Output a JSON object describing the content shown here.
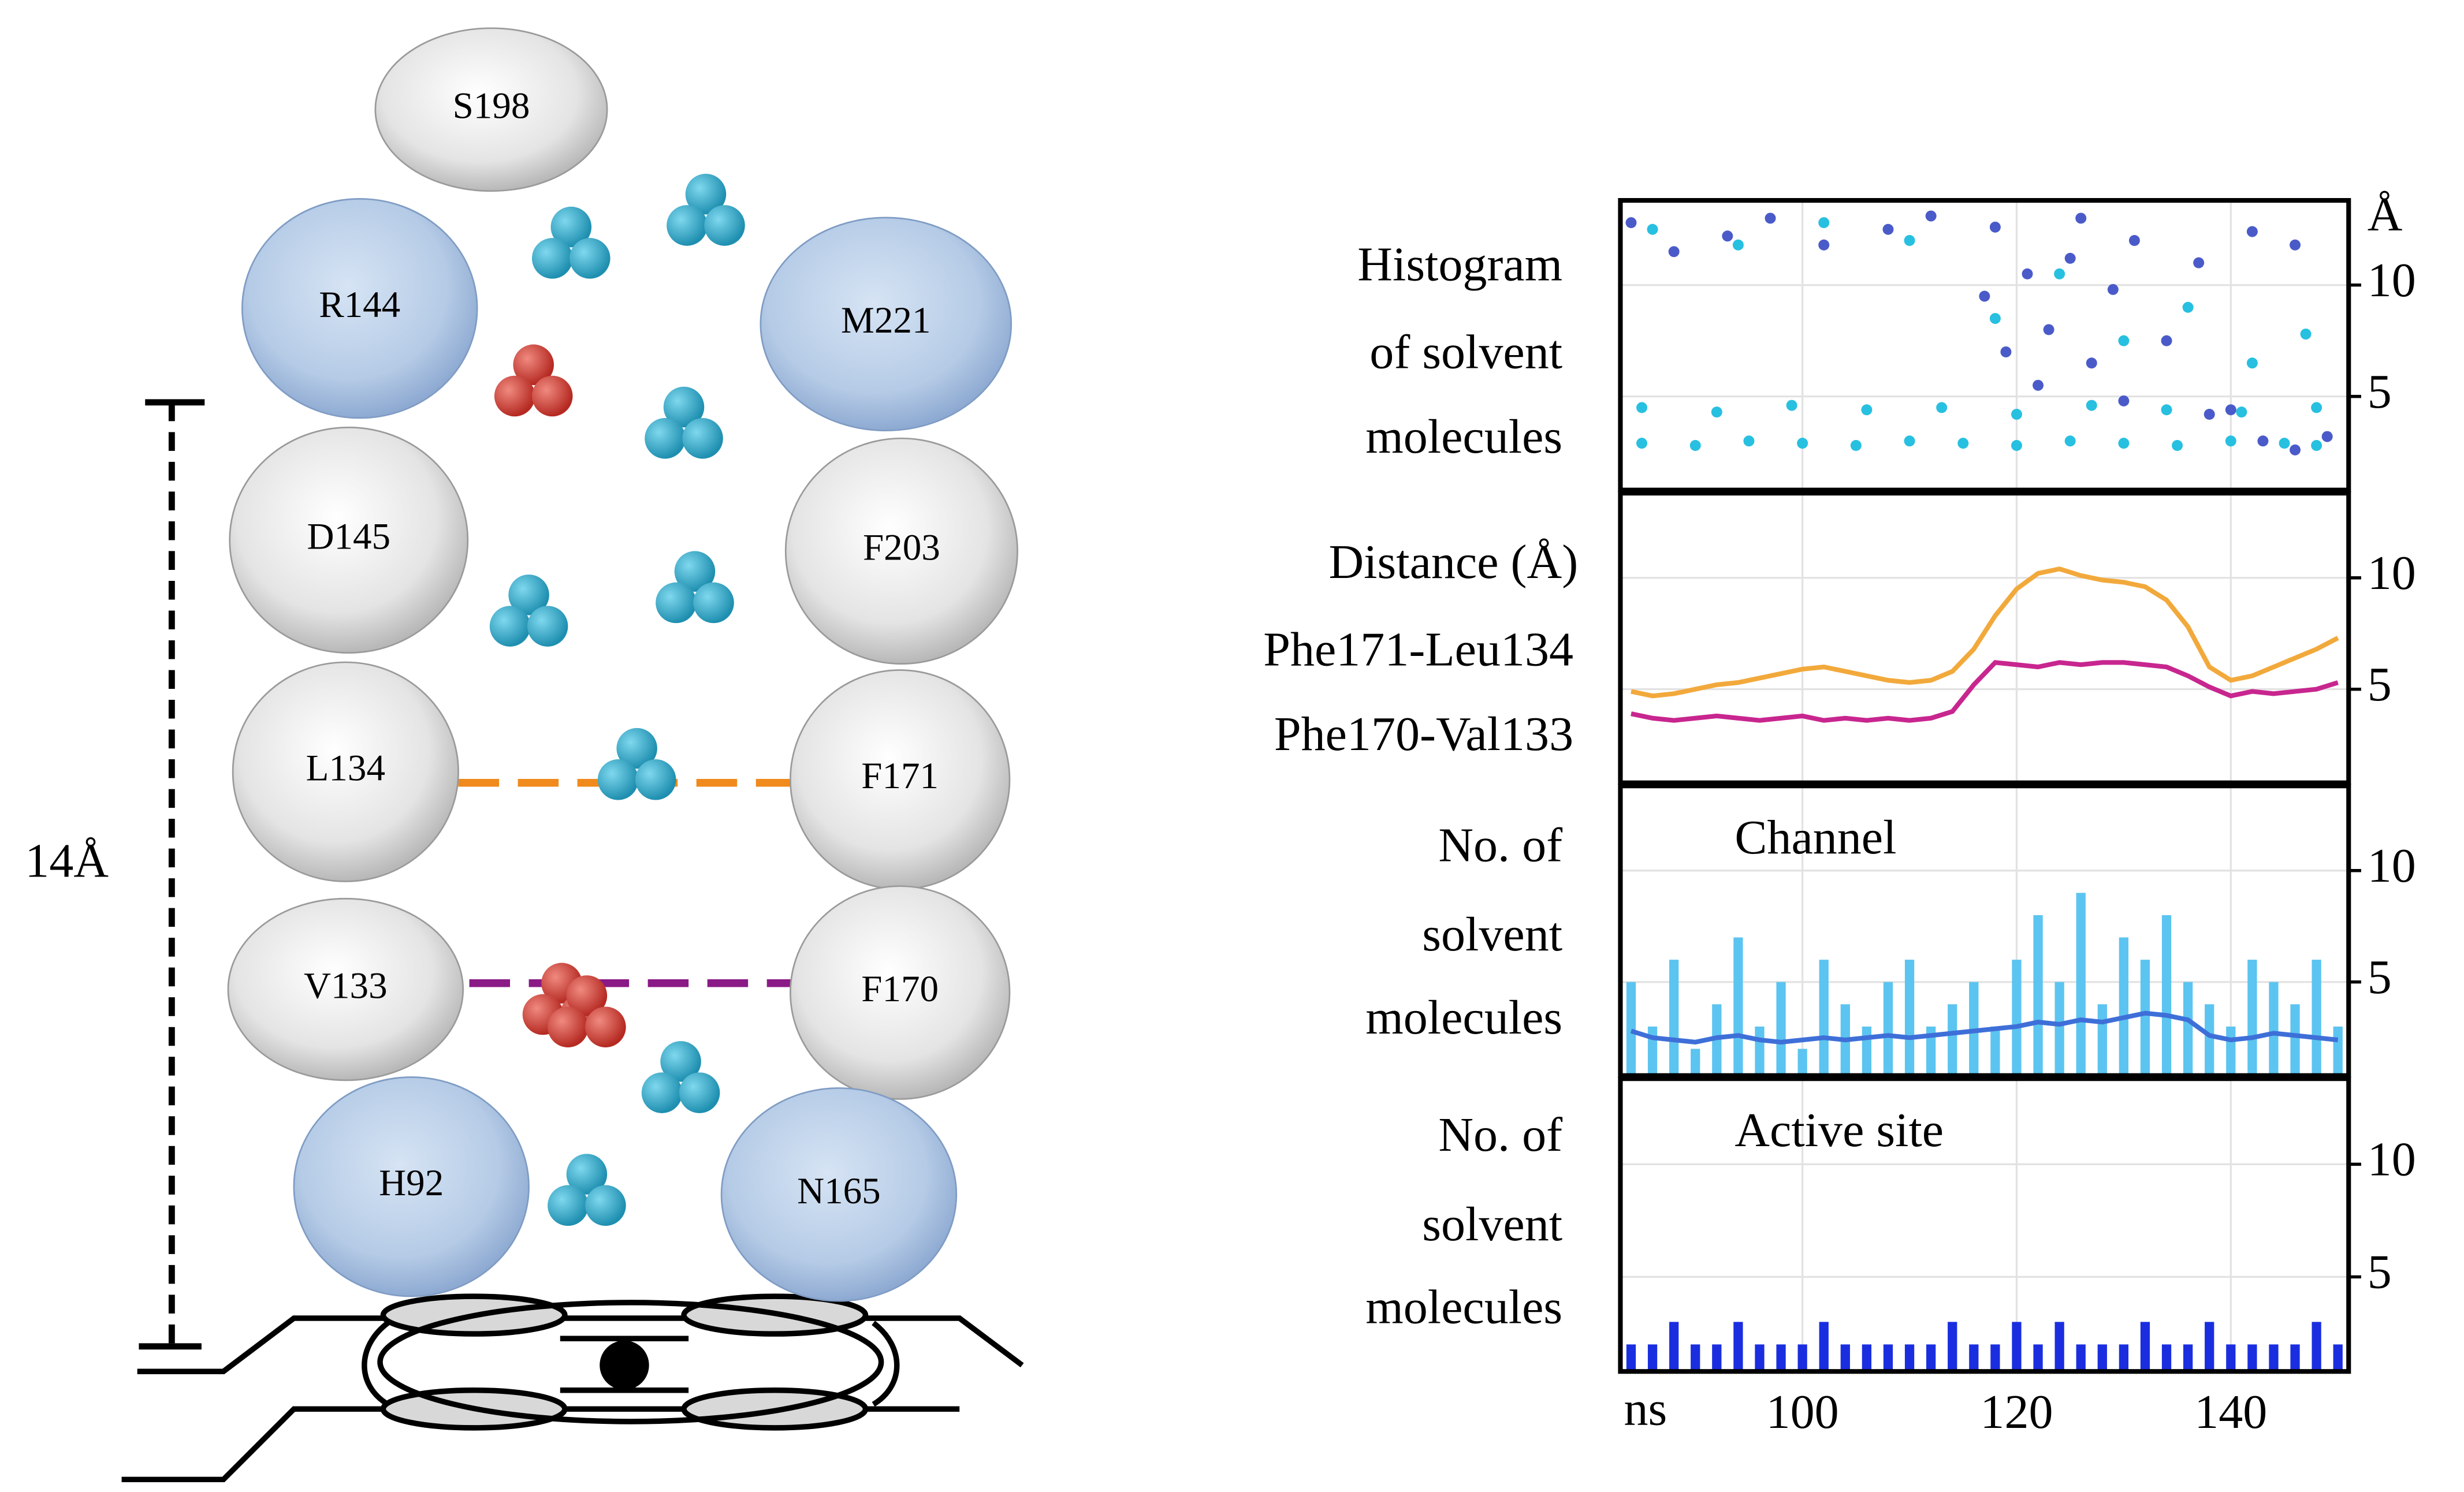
{
  "diagram": {
    "nodes": [
      {
        "label": "S198"
      },
      {
        "label": "R144"
      },
      {
        "label": "M221"
      },
      {
        "label": "D145"
      },
      {
        "label": "F203"
      },
      {
        "label": "L134"
      },
      {
        "label": "F171"
      },
      {
        "label": "V133"
      },
      {
        "label": "F170"
      },
      {
        "label": "H92"
      },
      {
        "label": "N165"
      }
    ],
    "distance_label": "14Å"
  },
  "x_axis": {
    "xlim": [
      83,
      151
    ],
    "xticks": [
      100,
      120,
      140
    ],
    "unit_label": "ns"
  },
  "chart_data": [
    {
      "type": "scatter",
      "label_lines": [
        "Histogram",
        "of solvent",
        "molecules"
      ],
      "y_unit": "Å",
      "ylim": [
        0.8,
        13.8
      ],
      "yticks": [
        5,
        10
      ],
      "grid": true,
      "series": [
        {
          "color": "#27c0e0",
          "x": [
            85,
            90,
            95,
            100,
            105,
            110,
            115,
            120,
            125,
            130,
            135,
            140,
            145,
            148,
            85,
            92,
            99,
            106,
            113,
            120,
            127,
            134,
            141,
            148,
            86,
            94,
            102,
            110,
            118,
            124,
            130,
            136,
            142,
            147
          ],
          "values": [
            2.9,
            2.8,
            3.0,
            2.9,
            2.8,
            3.0,
            2.9,
            2.8,
            3.0,
            2.9,
            2.8,
            3.0,
            2.9,
            2.8,
            4.5,
            4.3,
            4.6,
            4.4,
            4.5,
            4.2,
            4.6,
            4.4,
            4.3,
            4.5,
            12.5,
            11.8,
            12.8,
            12.0,
            8.5,
            10.5,
            7.5,
            9.0,
            6.5,
            7.8
          ]
        },
        {
          "color": "#4a5bc9",
          "x": [
            84,
            88,
            93,
            97,
            102,
            108,
            112,
            117,
            119,
            121,
            123,
            125,
            127,
            129,
            131,
            134,
            137,
            140,
            143,
            146,
            149,
            118,
            122,
            126,
            130,
            138,
            142,
            146
          ],
          "values": [
            12.8,
            11.5,
            12.2,
            13.0,
            11.8,
            12.5,
            13.1,
            9.5,
            7.0,
            10.5,
            8.0,
            11.2,
            6.5,
            9.8,
            12.0,
            7.5,
            11.0,
            4.4,
            3.0,
            2.6,
            3.2,
            12.6,
            5.5,
            13.0,
            4.8,
            4.2,
            12.4,
            11.8
          ]
        }
      ]
    },
    {
      "type": "line",
      "title": "Distance (Å)",
      "ylim": [
        0.8,
        13.8
      ],
      "yticks": [
        5,
        10
      ],
      "grid": true,
      "x": [
        84,
        86,
        88,
        90,
        92,
        94,
        96,
        98,
        100,
        102,
        104,
        106,
        108,
        110,
        112,
        114,
        116,
        118,
        120,
        122,
        124,
        126,
        128,
        130,
        132,
        134,
        136,
        138,
        140,
        142,
        144,
        146,
        148,
        150
      ],
      "series": [
        {
          "name": "Phe171-Leu134",
          "color": "#f2a93b",
          "label_color": "#f2c61f",
          "values": [
            4.9,
            4.7,
            4.8,
            5.0,
            5.2,
            5.3,
            5.5,
            5.7,
            5.9,
            6.0,
            5.8,
            5.6,
            5.4,
            5.3,
            5.4,
            5.8,
            6.8,
            8.3,
            9.5,
            10.2,
            10.4,
            10.1,
            9.9,
            9.8,
            9.6,
            9.0,
            7.8,
            6.0,
            5.4,
            5.6,
            6.0,
            6.4,
            6.8,
            7.3
          ]
        },
        {
          "name": "Phe170-Val133",
          "color": "#c8268f",
          "label_color": "#8a2bb0",
          "values": [
            3.9,
            3.7,
            3.6,
            3.7,
            3.8,
            3.7,
            3.6,
            3.7,
            3.8,
            3.6,
            3.7,
            3.6,
            3.7,
            3.6,
            3.7,
            4.0,
            5.2,
            6.2,
            6.1,
            6.0,
            6.2,
            6.1,
            6.2,
            6.2,
            6.1,
            6.0,
            5.6,
            5.1,
            4.7,
            4.9,
            4.8,
            4.9,
            5.0,
            5.3
          ]
        }
      ]
    },
    {
      "type": "bar",
      "title": "Channel",
      "label_lines": [
        "No. of",
        "solvent",
        "molecules"
      ],
      "ylim": [
        0.8,
        13.8
      ],
      "yticks": [
        5,
        10
      ],
      "grid": true,
      "x": [
        84,
        86,
        88,
        90,
        92,
        94,
        96,
        98,
        100,
        102,
        104,
        106,
        108,
        110,
        112,
        114,
        116,
        118,
        120,
        122,
        124,
        126,
        128,
        130,
        132,
        134,
        136,
        138,
        140,
        142,
        144,
        146,
        148,
        150
      ],
      "series": [
        {
          "type": "bar",
          "color": "#5cc4f0",
          "values": [
            5,
            3,
            6,
            2,
            4,
            7,
            3,
            5,
            2,
            6,
            4,
            3,
            5,
            6,
            3,
            4,
            5,
            3,
            6,
            8,
            5,
            9,
            4,
            7,
            6,
            8,
            5,
            4,
            3,
            6,
            5,
            4,
            6,
            3
          ]
        },
        {
          "type": "line",
          "color": "#3e6fd8",
          "values": [
            2.8,
            2.5,
            2.4,
            2.3,
            2.5,
            2.6,
            2.4,
            2.3,
            2.4,
            2.5,
            2.4,
            2.5,
            2.6,
            2.5,
            2.6,
            2.7,
            2.8,
            2.9,
            3.0,
            3.2,
            3.1,
            3.3,
            3.2,
            3.4,
            3.6,
            3.5,
            3.3,
            2.6,
            2.4,
            2.5,
            2.7,
            2.6,
            2.5,
            2.4
          ]
        }
      ]
    },
    {
      "type": "bar",
      "title": "Active site",
      "label_lines": [
        "No. of",
        "solvent",
        "molecules"
      ],
      "ylim": [
        0.8,
        13.8
      ],
      "yticks": [
        5,
        10
      ],
      "grid": true,
      "x": [
        84,
        86,
        88,
        90,
        92,
        94,
        96,
        98,
        100,
        102,
        104,
        106,
        108,
        110,
        112,
        114,
        116,
        118,
        120,
        122,
        124,
        126,
        128,
        130,
        132,
        134,
        136,
        138,
        140,
        142,
        144,
        146,
        148,
        150
      ],
      "series": [
        {
          "type": "bar",
          "color": "#1a2ee0",
          "values": [
            2,
            2,
            3,
            2,
            2,
            3,
            2,
            2,
            2,
            3,
            2,
            2,
            2,
            2,
            2,
            3,
            2,
            2,
            3,
            2,
            3,
            2,
            2,
            2,
            3,
            2,
            2,
            3,
            2,
            2,
            2,
            2,
            3,
            2
          ]
        }
      ]
    }
  ]
}
